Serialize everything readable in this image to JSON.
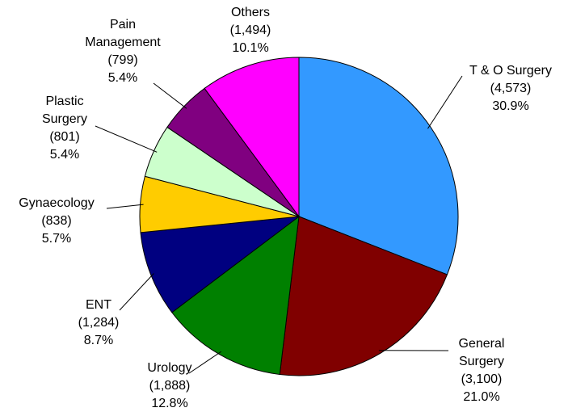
{
  "chart_data": {
    "type": "pie",
    "categories": [
      "T & O Surgery",
      "General\nSurgery",
      "Urology",
      "ENT",
      "Gynaecology",
      "Plastic\nSurgery",
      "Pain\nManagement",
      "Others"
    ],
    "values": [
      4573,
      3100,
      1888,
      1284,
      838,
      801,
      799,
      1494
    ],
    "value_labels": [
      "(4,573)",
      "(3,100)",
      "(1,888)",
      "(1,284)",
      "(838)",
      "(801)",
      "(799)",
      "(1,494)"
    ],
    "percent_labels": [
      "30.9%",
      "21.0%",
      "12.8%",
      "8.7%",
      "5.7%",
      "5.4%",
      "5.4%",
      "10.1%"
    ],
    "colors": [
      "#3399ff",
      "#800000",
      "#008000",
      "#000080",
      "#ffcc00",
      "#ccffcc",
      "#800080",
      "#ff00ff"
    ]
  }
}
